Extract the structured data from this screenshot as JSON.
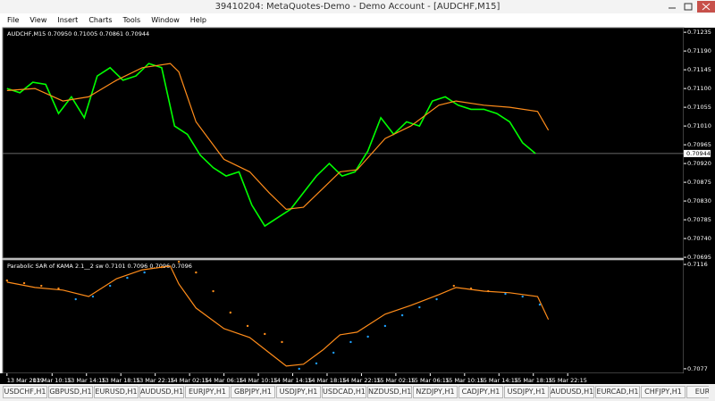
{
  "window": {
    "title": "39410204: MetaQuotes-Demo - Demo Account - [AUDCHF,M15]",
    "menu": [
      "File",
      "View",
      "Insert",
      "Charts",
      "Tools",
      "Window",
      "Help"
    ]
  },
  "chart_data": [
    {
      "type": "line",
      "title": "AUDCHF,M15  0.70950 0.71005 0.70861 0.70944",
      "xlim": [
        -2,
        315
      ],
      "ylim": [
        0.70693,
        0.71246
      ],
      "yticks": [
        0.71235,
        {
          "value": 0.7119,
          "label": "0.71190"
        },
        0.71145,
        {
          "value": 0.711,
          "label": "0.71100"
        },
        0.71055,
        {
          "value": 0.7101,
          "label": "0.71010"
        },
        0.70965,
        {
          "value": 0.7092,
          "label": "0.70920"
        },
        0.70875,
        {
          "value": 0.7083,
          "label": "0.70830"
        },
        0.70785,
        {
          "value": 0.7074,
          "label": "0.70740"
        },
        0.70695
      ],
      "current_price": 0.70944,
      "series": [
        {
          "color": "#00ff00",
          "x": [
            0,
            6,
            12,
            18,
            24,
            30,
            36,
            42,
            48,
            54,
            60,
            66,
            72,
            78,
            84,
            90,
            96,
            102,
            108,
            114,
            120,
            126,
            132,
            138,
            144,
            150,
            156,
            162,
            168,
            174,
            180,
            186,
            192,
            198,
            204,
            210,
            216,
            222,
            228,
            234,
            240,
            246
          ],
          "values": [
            0.711,
            0.7109,
            0.71115,
            0.7111,
            0.7104,
            0.7108,
            0.7103,
            0.7113,
            0.7115,
            0.7112,
            0.7113,
            0.7116,
            0.7115,
            0.7101,
            0.7099,
            0.7094,
            0.7091,
            0.7089,
            0.709,
            0.7082,
            0.7077,
            0.7079,
            0.7081,
            0.7085,
            0.7089,
            0.7092,
            0.7089,
            0.709,
            0.7095,
            0.7103,
            0.7099,
            0.7102,
            0.7101,
            0.7107,
            0.7108,
            0.7106,
            0.7105,
            0.7105,
            0.7104,
            0.7102,
            0.7097,
            0.70944
          ]
        },
        {
          "color": "#ff8c1a",
          "x": [
            0,
            13,
            26,
            38,
            51,
            63,
            76,
            80,
            88,
            101,
            113,
            122,
            130,
            138,
            147,
            155,
            163,
            176,
            188,
            201,
            209,
            222,
            234,
            247,
            252
          ],
          "values": [
            0.71095,
            0.711,
            0.7107,
            0.7108,
            0.7112,
            0.7115,
            0.7116,
            0.7114,
            0.7102,
            0.7093,
            0.709,
            0.7085,
            0.7081,
            0.70815,
            0.7086,
            0.709,
            0.70905,
            0.7098,
            0.7101,
            0.7106,
            0.7107,
            0.7106,
            0.71055,
            0.71045,
            0.71
          ]
        }
      ]
    },
    {
      "type": "line",
      "title": "Parabolic SAR of KAMA 2.1__2 sw 0.7101 0.7096 0.7096 0.7096",
      "xlim": [
        -2,
        315
      ],
      "ylim": [
        0.70753,
        0.71177
      ],
      "yticks": [
        0.7116,
        0.7077
      ],
      "xticks": [
        {
          "value": 0,
          "label": "13 Mar 2019"
        },
        {
          "value": 21,
          "label": "13 Mar 10:15"
        },
        {
          "value": 37,
          "label": "13 Mar 14:15"
        },
        {
          "value": 53,
          "label": "13 Mar 18:15"
        },
        {
          "value": 69,
          "label": "13 Mar 22:15"
        },
        {
          "value": 85,
          "label": "14 Mar 02:15"
        },
        {
          "value": 101,
          "label": "14 Mar 06:15"
        },
        {
          "value": 117,
          "label": "14 Mar 10:15"
        },
        {
          "value": 133,
          "label": "14 Mar 14:15"
        },
        {
          "value": 149,
          "label": "14 Mar 18:15"
        },
        {
          "value": 165,
          "label": "14 Mar 22:15"
        },
        {
          "value": 181,
          "label": "15 Mar 02:15"
        },
        {
          "value": 197,
          "label": "15 Mar 06:15"
        },
        {
          "value": 213,
          "label": "15 Mar 10:15"
        },
        {
          "value": 229,
          "label": "15 Mar 14:15"
        },
        {
          "value": 245,
          "label": "15 Mar 18:15"
        },
        {
          "value": 261,
          "label": "15 Mar 22:15"
        }
      ],
      "series": [
        {
          "color": "#ff8c1a",
          "x": [
            0,
            13,
            26,
            38,
            51,
            63,
            76,
            80,
            88,
            101,
            113,
            122,
            130,
            138,
            147,
            155,
            163,
            176,
            188,
            201,
            209,
            222,
            234,
            247,
            252
          ],
          "values": [
            0.71094,
            0.71074,
            0.71064,
            0.7104,
            0.71107,
            0.7114,
            0.71154,
            0.71087,
            0.70997,
            0.7092,
            0.70887,
            0.7083,
            0.7078,
            0.70787,
            0.7084,
            0.70897,
            0.70907,
            0.70974,
            0.71007,
            0.71047,
            0.71074,
            0.7106,
            0.71054,
            0.7104,
            0.70954
          ]
        },
        {
          "color": "#ff8c1a",
          "color_below": "#1ea0ff",
          "dots": true,
          "x": [
            0,
            8,
            16,
            24,
            32,
            40,
            48,
            56,
            64,
            72,
            80,
            88,
            96,
            104,
            112,
            120,
            128,
            136,
            144,
            152,
            160,
            168,
            176,
            184,
            192,
            200,
            208,
            216,
            224,
            232,
            240,
            248
          ],
          "values": [
            0.711,
            0.7109,
            0.7108,
            0.7107,
            0.7103,
            0.7104,
            0.7108,
            0.7111,
            0.7113,
            0.7115,
            0.7117,
            0.7113,
            0.7106,
            0.7098,
            0.7093,
            0.709,
            0.7087,
            0.7077,
            0.7079,
            0.7083,
            0.7087,
            0.7089,
            0.7093,
            0.7097,
            0.71,
            0.7103,
            0.7108,
            0.7107,
            0.7106,
            0.7105,
            0.7104,
            0.7101
          ]
        }
      ]
    }
  ],
  "tabs": [
    "USDCHF,H1",
    "GBPUSD,H1",
    "EURUSD,H1",
    "AUDUSD,H1",
    "EURJPY,H1",
    "GBPJPY,H1",
    "USDJPY,H1",
    "USDCAD,H1",
    "NZDUSD,H1",
    "NZDJPY,H1",
    "CADJPY,H1",
    "USDJPY,H1",
    "AUDUSD,H1",
    "EURCAD,H1",
    "CHFJPY,H1",
    "EURGBI"
  ]
}
